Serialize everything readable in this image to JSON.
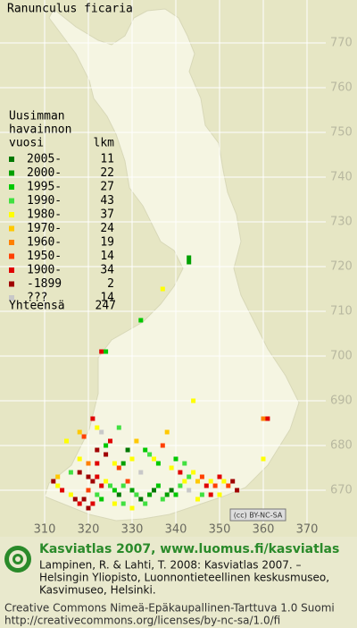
{
  "title": "Ranunculus ficaria",
  "map": {
    "y_ticks": [
      770,
      760,
      750,
      740,
      730,
      720,
      710,
      700,
      690,
      680,
      670
    ],
    "x_ticks": [
      310,
      320,
      330,
      340,
      350,
      360,
      370
    ],
    "points": [
      [
        343,
        722,
        1
      ],
      [
        343,
        721,
        1
      ],
      [
        337,
        715,
        4
      ],
      [
        332,
        708,
        2
      ],
      [
        323,
        701,
        8
      ],
      [
        324,
        701,
        2
      ],
      [
        344,
        690,
        4
      ],
      [
        360,
        686,
        6
      ],
      [
        361,
        686,
        8
      ],
      [
        360,
        677,
        4
      ],
      [
        312,
        672,
        9
      ],
      [
        313,
        671,
        4
      ],
      [
        314,
        670,
        8
      ],
      [
        316,
        669,
        4
      ],
      [
        317,
        668,
        9
      ],
      [
        318,
        667,
        8
      ],
      [
        319,
        668,
        9
      ],
      [
        320,
        666,
        9
      ],
      [
        321,
        667,
        8
      ],
      [
        320,
        670,
        7
      ],
      [
        322,
        669,
        3
      ],
      [
        323,
        671,
        8
      ],
      [
        324,
        672,
        4
      ],
      [
        325,
        671,
        3
      ],
      [
        326,
        670,
        2
      ],
      [
        327,
        669,
        0
      ],
      [
        328,
        671,
        3
      ],
      [
        329,
        672,
        7
      ],
      [
        330,
        670,
        1
      ],
      [
        331,
        669,
        3
      ],
      [
        332,
        668,
        0
      ],
      [
        333,
        667,
        3
      ],
      [
        334,
        669,
        1
      ],
      [
        335,
        670,
        0
      ],
      [
        336,
        671,
        2
      ],
      [
        337,
        668,
        3
      ],
      [
        338,
        669,
        1
      ],
      [
        339,
        670,
        0
      ],
      [
        340,
        669,
        2
      ],
      [
        341,
        671,
        3
      ],
      [
        342,
        672,
        4
      ],
      [
        343,
        673,
        3
      ],
      [
        344,
        674,
        4
      ],
      [
        345,
        672,
        5
      ],
      [
        346,
        673,
        7
      ],
      [
        347,
        671,
        8
      ],
      [
        348,
        672,
        4
      ],
      [
        349,
        671,
        7
      ],
      [
        350,
        673,
        8
      ],
      [
        351,
        672,
        4
      ],
      [
        352,
        671,
        7
      ],
      [
        353,
        672,
        9
      ],
      [
        354,
        670,
        9
      ],
      [
        350,
        669,
        4
      ],
      [
        345,
        668,
        4
      ],
      [
        348,
        669,
        8
      ],
      [
        315,
        681,
        4
      ],
      [
        318,
        683,
        5
      ],
      [
        319,
        682,
        7
      ],
      [
        321,
        686,
        8
      ],
      [
        322,
        684,
        4
      ],
      [
        323,
        683,
        10
      ],
      [
        324,
        680,
        2
      ],
      [
        325,
        681,
        8
      ],
      [
        324,
        678,
        9
      ],
      [
        318,
        677,
        4
      ],
      [
        320,
        676,
        6
      ],
      [
        322,
        676,
        8
      ],
      [
        326,
        676,
        4
      ],
      [
        327,
        675,
        7
      ],
      [
        328,
        676,
        1
      ],
      [
        329,
        679,
        0
      ],
      [
        330,
        677,
        4
      ],
      [
        332,
        674,
        10
      ],
      [
        333,
        679,
        2
      ],
      [
        334,
        678,
        3
      ],
      [
        335,
        677,
        4
      ],
      [
        336,
        676,
        2
      ],
      [
        337,
        680,
        7
      ],
      [
        338,
        683,
        5
      ],
      [
        339,
        675,
        4
      ],
      [
        340,
        677,
        2
      ],
      [
        341,
        674,
        8
      ],
      [
        342,
        676,
        3
      ],
      [
        327,
        684,
        3
      ],
      [
        331,
        681,
        5
      ],
      [
        322,
        679,
        9
      ],
      [
        316,
        674,
        3
      ],
      [
        318,
        674,
        9
      ],
      [
        313,
        673,
        5
      ],
      [
        320,
        673,
        9
      ],
      [
        321,
        672,
        9
      ],
      [
        322,
        673,
        8
      ],
      [
        323,
        668,
        2
      ],
      [
        326,
        667,
        4
      ],
      [
        328,
        667,
        3
      ],
      [
        330,
        666,
        4
      ],
      [
        343,
        670,
        10
      ],
      [
        346,
        669,
        3
      ]
    ]
  },
  "legend": {
    "title": [
      "Uusimman",
      "havainnon",
      "vuosi"
    ],
    "count_header": "lkm",
    "rows": [
      {
        "label": "2005-",
        "count": 11,
        "color": "#007800"
      },
      {
        "label": "2000-",
        "count": 22,
        "color": "#00a000"
      },
      {
        "label": "1995-",
        "count": 27,
        "color": "#00c800"
      },
      {
        "label": "1990-",
        "count": 43,
        "color": "#40e040"
      },
      {
        "label": "1980-",
        "count": 37,
        "color": "#ffff00"
      },
      {
        "label": "1970-",
        "count": 24,
        "color": "#ffc800"
      },
      {
        "label": "1960-",
        "count": 19,
        "color": "#ff8000"
      },
      {
        "label": "1950-",
        "count": 14,
        "color": "#ff4000"
      },
      {
        "label": "1900-",
        "count": 34,
        "color": "#e00000"
      },
      {
        "label": "-1899",
        "count": 2,
        "color": "#a00000"
      },
      {
        "label": "???",
        "count": 14,
        "color": "#c8c8c8"
      }
    ],
    "total_label": "Yhteensä",
    "total": 247
  },
  "license_badge": "(cc) BY-NC-SA",
  "footer": {
    "heading": "Kasviatlas 2007, www.luomus.fi/kasviatlas",
    "citation": [
      "Lampinen, R. & Lahti, T. 2008: Kasviatlas 2007. –",
      "Helsingin Yliopisto, Luonnontieteellinen keskusmuseo,",
      "Kasvimuseo, Helsinki."
    ],
    "license": [
      "Creative Commons Nimeä-Epäkaupallinen-Tarttuva 1.0 Suomi",
      "http://creativecommons.org/licenses/by-nc-sa/1.0/fi"
    ]
  }
}
